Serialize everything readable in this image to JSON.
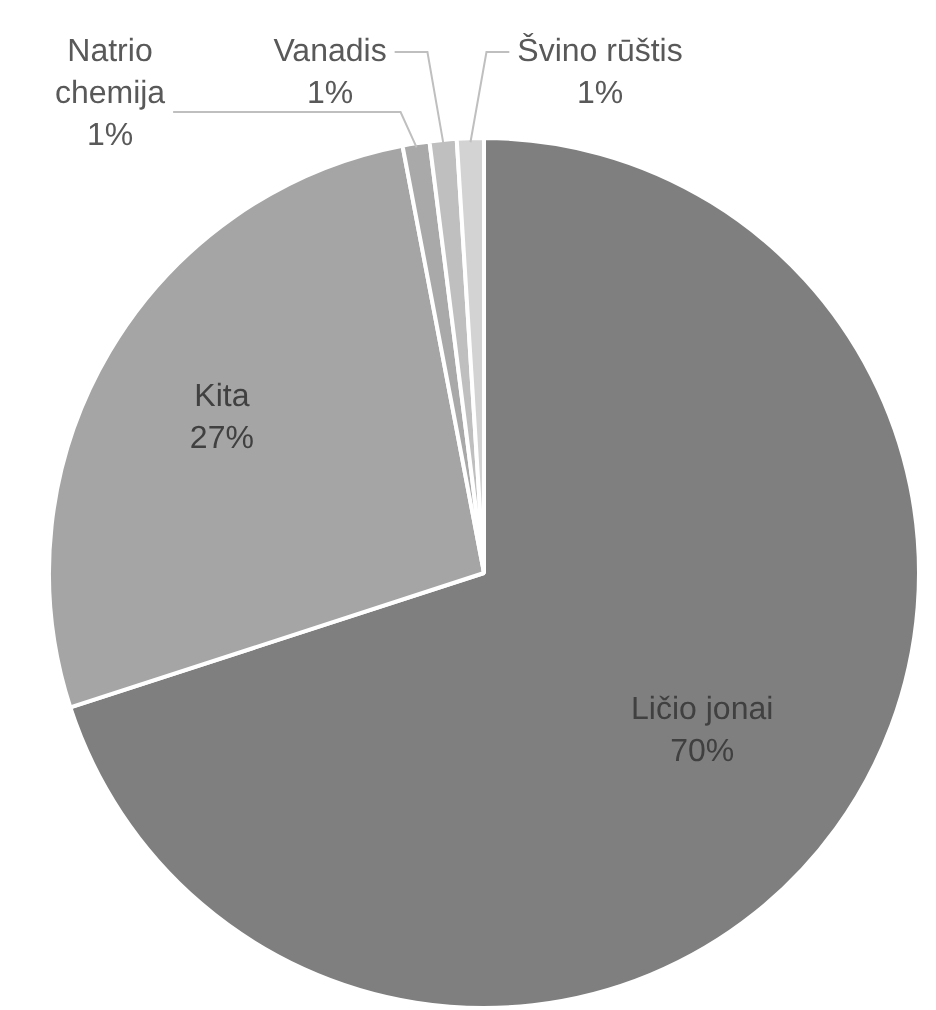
{
  "chart_data": {
    "type": "pie",
    "categories": [
      "Ličio jonai",
      "Kita",
      "Natrio chemija",
      "Vanadis",
      "Švino rūštis"
    ],
    "values": [
      70,
      27,
      1,
      1,
      1
    ],
    "colors": [
      "#7f7f7f",
      "#a5a5a5",
      "#a9a9a9",
      "#bfbfbf",
      "#d3d3d3"
    ],
    "value_labels": [
      "70%",
      "27%",
      "1%",
      "1%",
      "1%"
    ],
    "legend": false
  }
}
